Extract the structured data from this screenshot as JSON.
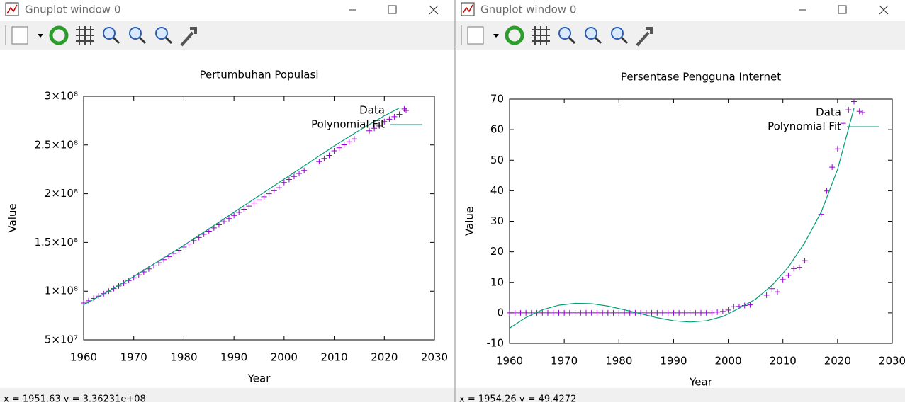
{
  "windows": [
    {
      "title": "Gnuplot window 0",
      "status": "x = 1951.63 y = 3.36231e+08"
    },
    {
      "title": "Gnuplot window 0",
      "status": "x = 1954.26 y = 49.4272"
    }
  ],
  "chart_data": [
    {
      "type": "scatter",
      "title": "Pertumbuhan Populasi",
      "x_label": "Year",
      "y_label": "Value",
      "xlim": [
        1960,
        2030
      ],
      "xticks": [
        1960,
        1970,
        1980,
        1990,
        2000,
        2010,
        2020,
        2030
      ],
      "ylim": [
        50000000,
        300000000
      ],
      "yticks": [
        {
          "value": 50000000,
          "label": "5×10⁷"
        },
        {
          "value": 100000000,
          "label": "1×10⁸"
        },
        {
          "value": 150000000,
          "label": "1.5×10⁸"
        },
        {
          "value": 200000000,
          "label": "2×10⁸"
        },
        {
          "value": 250000000,
          "label": "2.5×10⁸"
        },
        {
          "value": 300000000,
          "label": "3×10⁸"
        }
      ],
      "legend": "top-right",
      "series": [
        {
          "name": "Data",
          "color": "#9400d3",
          "style": "points",
          "x": [
            1960,
            1961,
            1962,
            1963,
            1964,
            1965,
            1966,
            1967,
            1968,
            1969,
            1970,
            1971,
            1972,
            1973,
            1974,
            1975,
            1976,
            1977,
            1978,
            1979,
            1980,
            1981,
            1982,
            1983,
            1984,
            1985,
            1986,
            1987,
            1988,
            1989,
            1990,
            1991,
            1992,
            1993,
            1994,
            1995,
            1996,
            1997,
            1998,
            1999,
            2000,
            2001,
            2002,
            2003,
            2004,
            2007,
            2008,
            2009,
            2010,
            2011,
            2012,
            2013,
            2014,
            2017,
            2018,
            2019,
            2020,
            2021,
            2022,
            2023,
            2024
          ],
          "values": [
            87800000,
            90100000,
            92500000,
            94900000,
            97400000,
            100000000,
            102600000,
            105300000,
            108100000,
            110900000,
            113800000,
            116800000,
            119800000,
            122900000,
            126000000,
            129100000,
            132300000,
            135500000,
            138700000,
            141900000,
            145200000,
            148500000,
            151800000,
            155100000,
            158400000,
            161600000,
            164900000,
            168100000,
            171300000,
            174500000,
            177700000,
            180900000,
            184100000,
            187300000,
            190500000,
            193700000,
            196900000,
            200000000,
            203100000,
            206200000,
            211500000,
            214600000,
            217700000,
            220800000,
            223900000,
            233000000,
            236200000,
            239300000,
            244000000,
            247100000,
            250200000,
            253300000,
            256300000,
            264600000,
            267100000,
            269600000,
            274000000,
            276500000,
            279000000,
            281500000,
            287000000
          ]
        },
        {
          "name": "Polynomial Fit",
          "color": "#009e73",
          "style": "line",
          "x": [
            1960,
            1965,
            1970,
            1975,
            1980,
            1985,
            1990,
            1995,
            2000,
            2005,
            2010,
            2015,
            2020,
            2023
          ],
          "values": [
            86000000,
            100000000,
            115000000,
            131000000,
            147000000,
            164000000,
            181000000,
            198000000,
            215000000,
            232000000,
            249000000,
            265000000,
            280000000,
            288000000
          ]
        }
      ]
    },
    {
      "type": "scatter",
      "title": "Persentase Pengguna Internet",
      "x_label": "Year",
      "y_label": "Value",
      "xlim": [
        1960,
        2030
      ],
      "xticks": [
        1960,
        1970,
        1980,
        1990,
        2000,
        2010,
        2020,
        2030
      ],
      "ylim": [
        -10,
        70
      ],
      "yticks": [
        -10,
        0,
        10,
        20,
        30,
        40,
        50,
        60,
        70
      ],
      "legend": "top-right",
      "series": [
        {
          "name": "Data",
          "color": "#9400d3",
          "style": "points",
          "x": [
            1960,
            1961,
            1962,
            1963,
            1964,
            1965,
            1966,
            1967,
            1968,
            1969,
            1970,
            1971,
            1972,
            1973,
            1974,
            1975,
            1976,
            1977,
            1978,
            1979,
            1980,
            1981,
            1982,
            1983,
            1984,
            1985,
            1986,
            1987,
            1988,
            1989,
            1990,
            1991,
            1992,
            1993,
            1994,
            1995,
            1996,
            1997,
            1998,
            1999,
            2000,
            2001,
            2002,
            2003,
            2004,
            2007,
            2008,
            2009,
            2010,
            2011,
            2012,
            2013,
            2014,
            2017,
            2018,
            2019,
            2020,
            2021,
            2022,
            2023,
            2024
          ],
          "values": [
            0,
            0,
            0,
            0,
            0,
            0,
            0,
            0,
            0,
            0,
            0,
            0,
            0,
            0,
            0,
            0,
            0,
            0,
            0,
            0,
            0,
            0,
            0,
            0,
            0,
            0,
            0,
            0,
            0,
            0,
            0,
            0,
            0,
            0,
            0,
            0,
            0,
            0,
            0.26,
            0.45,
            0.93,
            2.0,
            2.1,
            2.4,
            2.6,
            5.8,
            7.9,
            6.9,
            10.9,
            12.3,
            14.5,
            14.9,
            17.1,
            32.3,
            39.9,
            47.7,
            53.7,
            62.1,
            66.5,
            69.2,
            66
          ]
        },
        {
          "name": "Polynomial Fit",
          "color": "#009e73",
          "style": "line",
          "x": [
            1960,
            1963,
            1966,
            1969,
            1972,
            1975,
            1978,
            1981,
            1984,
            1987,
            1990,
            1993,
            1996,
            1999,
            2002,
            2005,
            2008,
            2011,
            2014,
            2017,
            2020,
            2023
          ],
          "values": [
            -5,
            -1.5,
            1,
            2.5,
            3.1,
            3,
            2.2,
            1,
            -0.3,
            -1.6,
            -2.6,
            -3,
            -2.6,
            -1.2,
            1.5,
            4.5,
            9,
            15,
            23,
            33,
            47,
            67
          ]
        }
      ]
    }
  ]
}
